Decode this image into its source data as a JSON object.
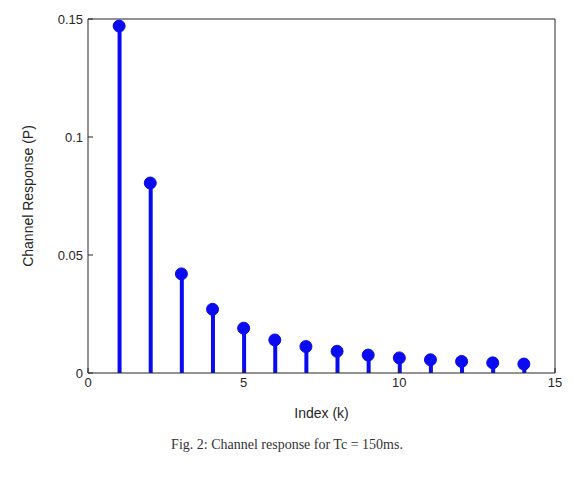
{
  "chart_data": {
    "type": "stem",
    "title": "Fig. 2: Channel response for Tc = 150ms.",
    "x_label": "Index (k)",
    "y_label": "Channel Response (P)",
    "x": [
      1,
      2,
      3,
      4,
      5,
      6,
      7,
      8,
      9,
      10,
      11,
      12,
      13,
      14
    ],
    "values": [
      0.147,
      0.0805,
      0.042,
      0.027,
      0.019,
      0.014,
      0.0112,
      0.0092,
      0.0076,
      0.0064,
      0.0056,
      0.0049,
      0.0043,
      0.0038
    ],
    "color": "#0b0bf0",
    "marker": "o",
    "xlim": [
      0,
      15
    ],
    "xticks": [
      0,
      5,
      10,
      15
    ],
    "ylim": [
      0,
      0.15
    ],
    "yticks": [
      0,
      0.05,
      0.1,
      0.15
    ],
    "grid": false
  }
}
